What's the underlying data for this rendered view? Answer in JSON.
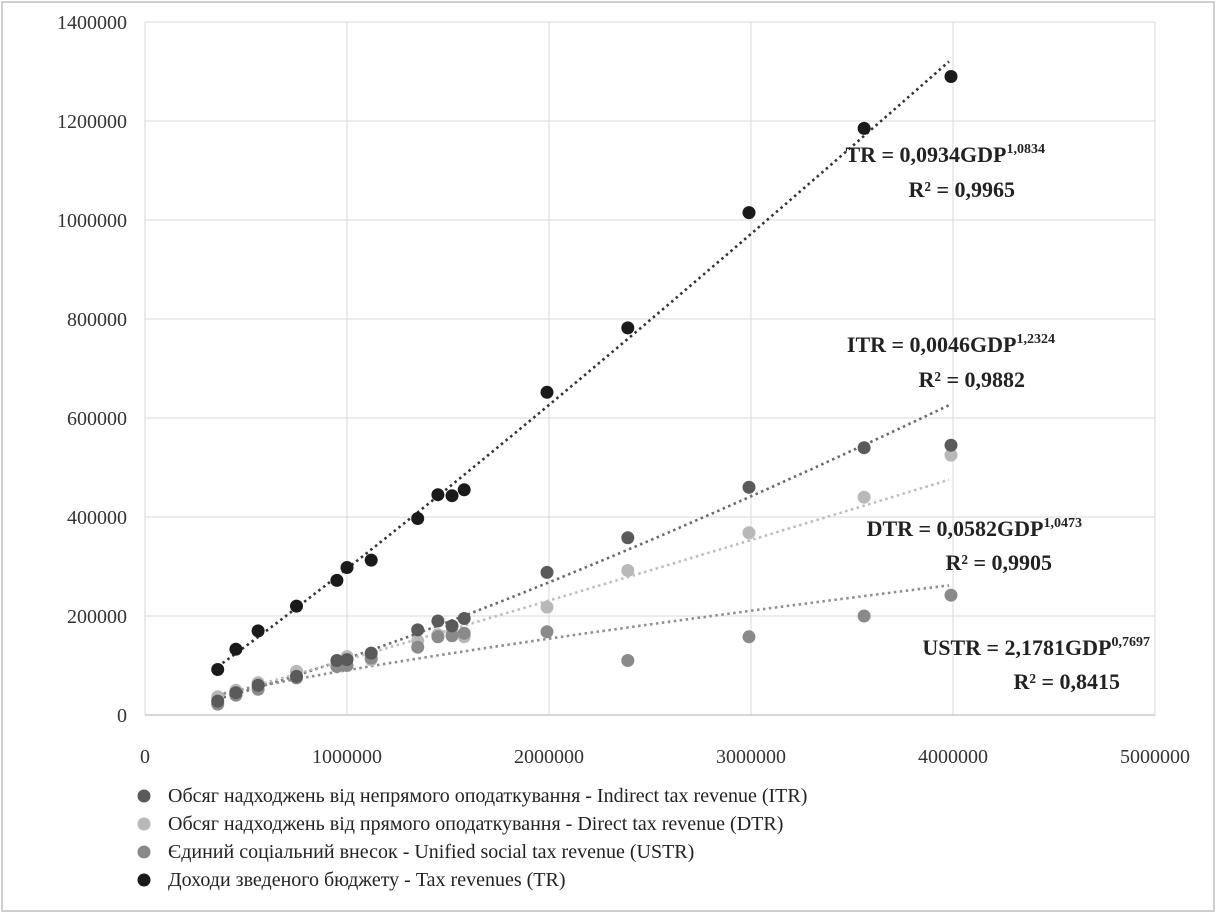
{
  "chart_data": {
    "type": "scatter",
    "title": "",
    "xlabel": "",
    "ylabel": "",
    "xlim": [
      0,
      5000000
    ],
    "ylim": [
      0,
      1400000
    ],
    "x_ticks": [
      "0",
      "1000000",
      "2000000",
      "3000000",
      "4000000",
      "5000000"
    ],
    "y_ticks": [
      "0",
      "200000",
      "400000",
      "600000",
      "800000",
      "1000000",
      "1200000",
      "1400000"
    ],
    "grid": true,
    "legend_position": "bottom",
    "series": [
      {
        "name": "Обсяг надходжень від непрямого оподаткування - Indirect tax revenue (ITR)",
        "color": "#5a5a5a",
        "trend_color": "#6a6a6a",
        "trend": {
          "a": 0.0046,
          "b": 1.2324,
          "x_from": 360000,
          "x_to": 3980000
        },
        "equation": "ITR = 0,0046GDP",
        "exponent": "1,2324",
        "r2": "R² = 0,9882",
        "points": [
          [
            360000,
            28000
          ],
          [
            450000,
            45000
          ],
          [
            560000,
            60000
          ],
          [
            750000,
            78000
          ],
          [
            950000,
            110000
          ],
          [
            1000000,
            112000
          ],
          [
            1120000,
            125000
          ],
          [
            1350000,
            172000
          ],
          [
            1450000,
            190000
          ],
          [
            1520000,
            180000
          ],
          [
            1580000,
            195000
          ],
          [
            1990000,
            288000
          ],
          [
            2390000,
            358000
          ],
          [
            2990000,
            460000
          ],
          [
            3560000,
            540000
          ],
          [
            3990000,
            545000
          ]
        ]
      },
      {
        "name": "Обсяг надходжень від прямого оподаткування - Direct tax revenue (DTR)",
        "color": "#b8b8b8",
        "trend_color": "#bdbdbd",
        "trend": {
          "a": 0.0582,
          "b": 1.0473,
          "x_from": 360000,
          "x_to": 3980000
        },
        "equation": "DTR = 0,0582GDP",
        "exponent": "1,0473",
        "r2": "R² = 0,9905",
        "points": [
          [
            360000,
            37000
          ],
          [
            450000,
            50000
          ],
          [
            560000,
            65000
          ],
          [
            750000,
            88000
          ],
          [
            950000,
            105000
          ],
          [
            1000000,
            118000
          ],
          [
            1120000,
            112000
          ],
          [
            1350000,
            150000
          ],
          [
            1450000,
            162000
          ],
          [
            1520000,
            168000
          ],
          [
            1580000,
            158000
          ],
          [
            1990000,
            218000
          ],
          [
            2390000,
            292000
          ],
          [
            2990000,
            368000
          ],
          [
            3560000,
            440000
          ],
          [
            3990000,
            525000
          ]
        ]
      },
      {
        "name": "Єдиний соціальний внесок - Unified social tax revenue (USTR)",
        "color": "#8a8a8a",
        "trend_color": "#8e8e8e",
        "trend": {
          "a": 2.1781,
          "b": 0.7697,
          "x_from": 360000,
          "x_to": 3980000
        },
        "equation": "USTR = 2,1781GDP",
        "exponent": "0,7697",
        "r2": "R² = 0,8415",
        "points": [
          [
            360000,
            22000
          ],
          [
            450000,
            40000
          ],
          [
            560000,
            52000
          ],
          [
            750000,
            75000
          ],
          [
            950000,
            98000
          ],
          [
            1000000,
            100000
          ],
          [
            1120000,
            115000
          ],
          [
            1350000,
            137000
          ],
          [
            1450000,
            158000
          ],
          [
            1520000,
            160000
          ],
          [
            1580000,
            165000
          ],
          [
            1990000,
            168000
          ],
          [
            2390000,
            110000
          ],
          [
            2990000,
            158000
          ],
          [
            3560000,
            200000
          ],
          [
            3990000,
            242000
          ]
        ]
      },
      {
        "name": "Доходи зведеного бюджету - Tax revenues (TR)",
        "color": "#1a1a1a",
        "trend_color": "#333333",
        "trend": {
          "a": 0.0934,
          "b": 1.0834,
          "x_from": 360000,
          "x_to": 3980000
        },
        "equation": "TR = 0,0934GDP",
        "exponent": "1,0834",
        "r2": "R² = 0,9965",
        "points": [
          [
            360000,
            92000
          ],
          [
            450000,
            133000
          ],
          [
            560000,
            170000
          ],
          [
            750000,
            220000
          ],
          [
            950000,
            272000
          ],
          [
            1000000,
            298000
          ],
          [
            1120000,
            313000
          ],
          [
            1350000,
            397000
          ],
          [
            1450000,
            445000
          ],
          [
            1520000,
            443000
          ],
          [
            1580000,
            455000
          ],
          [
            1990000,
            652000
          ],
          [
            2390000,
            782000
          ],
          [
            2990000,
            1015000
          ],
          [
            3560000,
            1185000
          ],
          [
            3990000,
            1290000
          ]
        ]
      }
    ]
  }
}
